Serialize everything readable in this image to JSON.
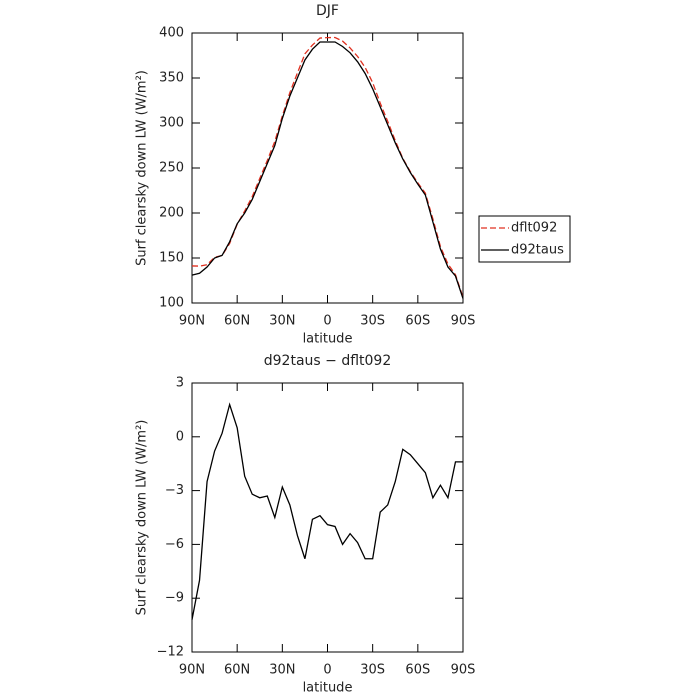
{
  "chart_data": [
    {
      "type": "line",
      "title": "DJF",
      "x_label": "latitude",
      "y_label": "Surf clearsky down LW (W/m²)",
      "x": [
        90,
        85,
        80,
        75,
        70,
        65,
        60,
        55,
        50,
        45,
        40,
        35,
        30,
        25,
        20,
        15,
        10,
        5,
        0,
        -5,
        -10,
        -15,
        -20,
        -25,
        -30,
        -35,
        -40,
        -45,
        -50,
        -55,
        -60,
        -65,
        -70,
        -75,
        -80,
        -85,
        -90
      ],
      "xlim": [
        90,
        -90
      ],
      "xticks": [
        {
          "value": 90,
          "label": "90N"
        },
        {
          "value": 60,
          "label": "60N"
        },
        {
          "value": 30,
          "label": "30N"
        },
        0,
        {
          "value": -30,
          "label": "30S"
        },
        {
          "value": -60,
          "label": "60S"
        },
        {
          "value": -90,
          "label": "90S"
        }
      ],
      "ylim": [
        100,
        400
      ],
      "yticks": [
        100,
        150,
        200,
        250,
        300,
        350,
        400
      ],
      "legend": "right",
      "series": [
        {
          "name": "dflt092",
          "color": "#e03020",
          "dash": true,
          "values": [
            141.2,
            141,
            142.5,
            150.8,
            152.8,
            166.2,
            187.5,
            202.2,
            218.2,
            238.4,
            258.3,
            279.5,
            307.8,
            333.8,
            355.5,
            376.8,
            386.6,
            394.4,
            394.9,
            395,
            391,
            383.4,
            373.9,
            361.8,
            344.8,
            322.2,
            301.8,
            280.5,
            260.7,
            246,
            233.5,
            222,
            193.4,
            162.7,
            143.4,
            131.4,
            106.4
          ]
        },
        {
          "name": "d92taus",
          "color": "#000000",
          "dash": false,
          "values": [
            131,
            133,
            140,
            150,
            153,
            168,
            188,
            200,
            215,
            235,
            255,
            275,
            305,
            330,
            350,
            370,
            382,
            390,
            390,
            390,
            385,
            378,
            368,
            355,
            338,
            318,
            298,
            278,
            260,
            245,
            232,
            220,
            190,
            160,
            140,
            130,
            105
          ]
        }
      ]
    },
    {
      "type": "line",
      "title": "d92taus − dflt092",
      "x_label": "latitude",
      "y_label": "Surf clearsky down LW (W/m²)",
      "x": [
        90,
        85,
        80,
        75,
        70,
        65,
        60,
        55,
        50,
        45,
        40,
        35,
        30,
        25,
        20,
        15,
        10,
        5,
        0,
        -5,
        -10,
        -15,
        -20,
        -25,
        -30,
        -35,
        -40,
        -45,
        -50,
        -55,
        -60,
        -65,
        -70,
        -75,
        -80,
        -85,
        -90
      ],
      "xlim": [
        90,
        -90
      ],
      "xticks": [
        {
          "value": 90,
          "label": "90N"
        },
        {
          "value": 60,
          "label": "60N"
        },
        {
          "value": 30,
          "label": "30N"
        },
        0,
        {
          "value": -30,
          "label": "30S"
        },
        {
          "value": -60,
          "label": "60S"
        },
        {
          "value": -90,
          "label": "90S"
        }
      ],
      "ylim": [
        -12,
        3
      ],
      "yticks": [
        {
          "value": -12,
          "label": "−12"
        },
        {
          "value": -9,
          "label": "−9"
        },
        {
          "value": -6,
          "label": "−6"
        },
        {
          "value": -3,
          "label": "−3"
        },
        0,
        3
      ],
      "series": [
        {
          "color": "#000000",
          "dash": false,
          "values": [
            -10.2,
            -8,
            -2.5,
            -0.8,
            0.2,
            1.8,
            0.5,
            -2.2,
            -3.2,
            -3.4,
            -3.3,
            -4.5,
            -2.8,
            -3.8,
            -5.5,
            -6.8,
            -4.6,
            -4.4,
            -4.9,
            -5,
            -6,
            -5.4,
            -5.9,
            -6.8,
            -6.8,
            -4.2,
            -3.8,
            -2.5,
            -0.7,
            -1,
            -1.5,
            -2,
            -3.4,
            -2.7,
            -3.4,
            -1.4,
            -1.4
          ]
        }
      ]
    }
  ]
}
